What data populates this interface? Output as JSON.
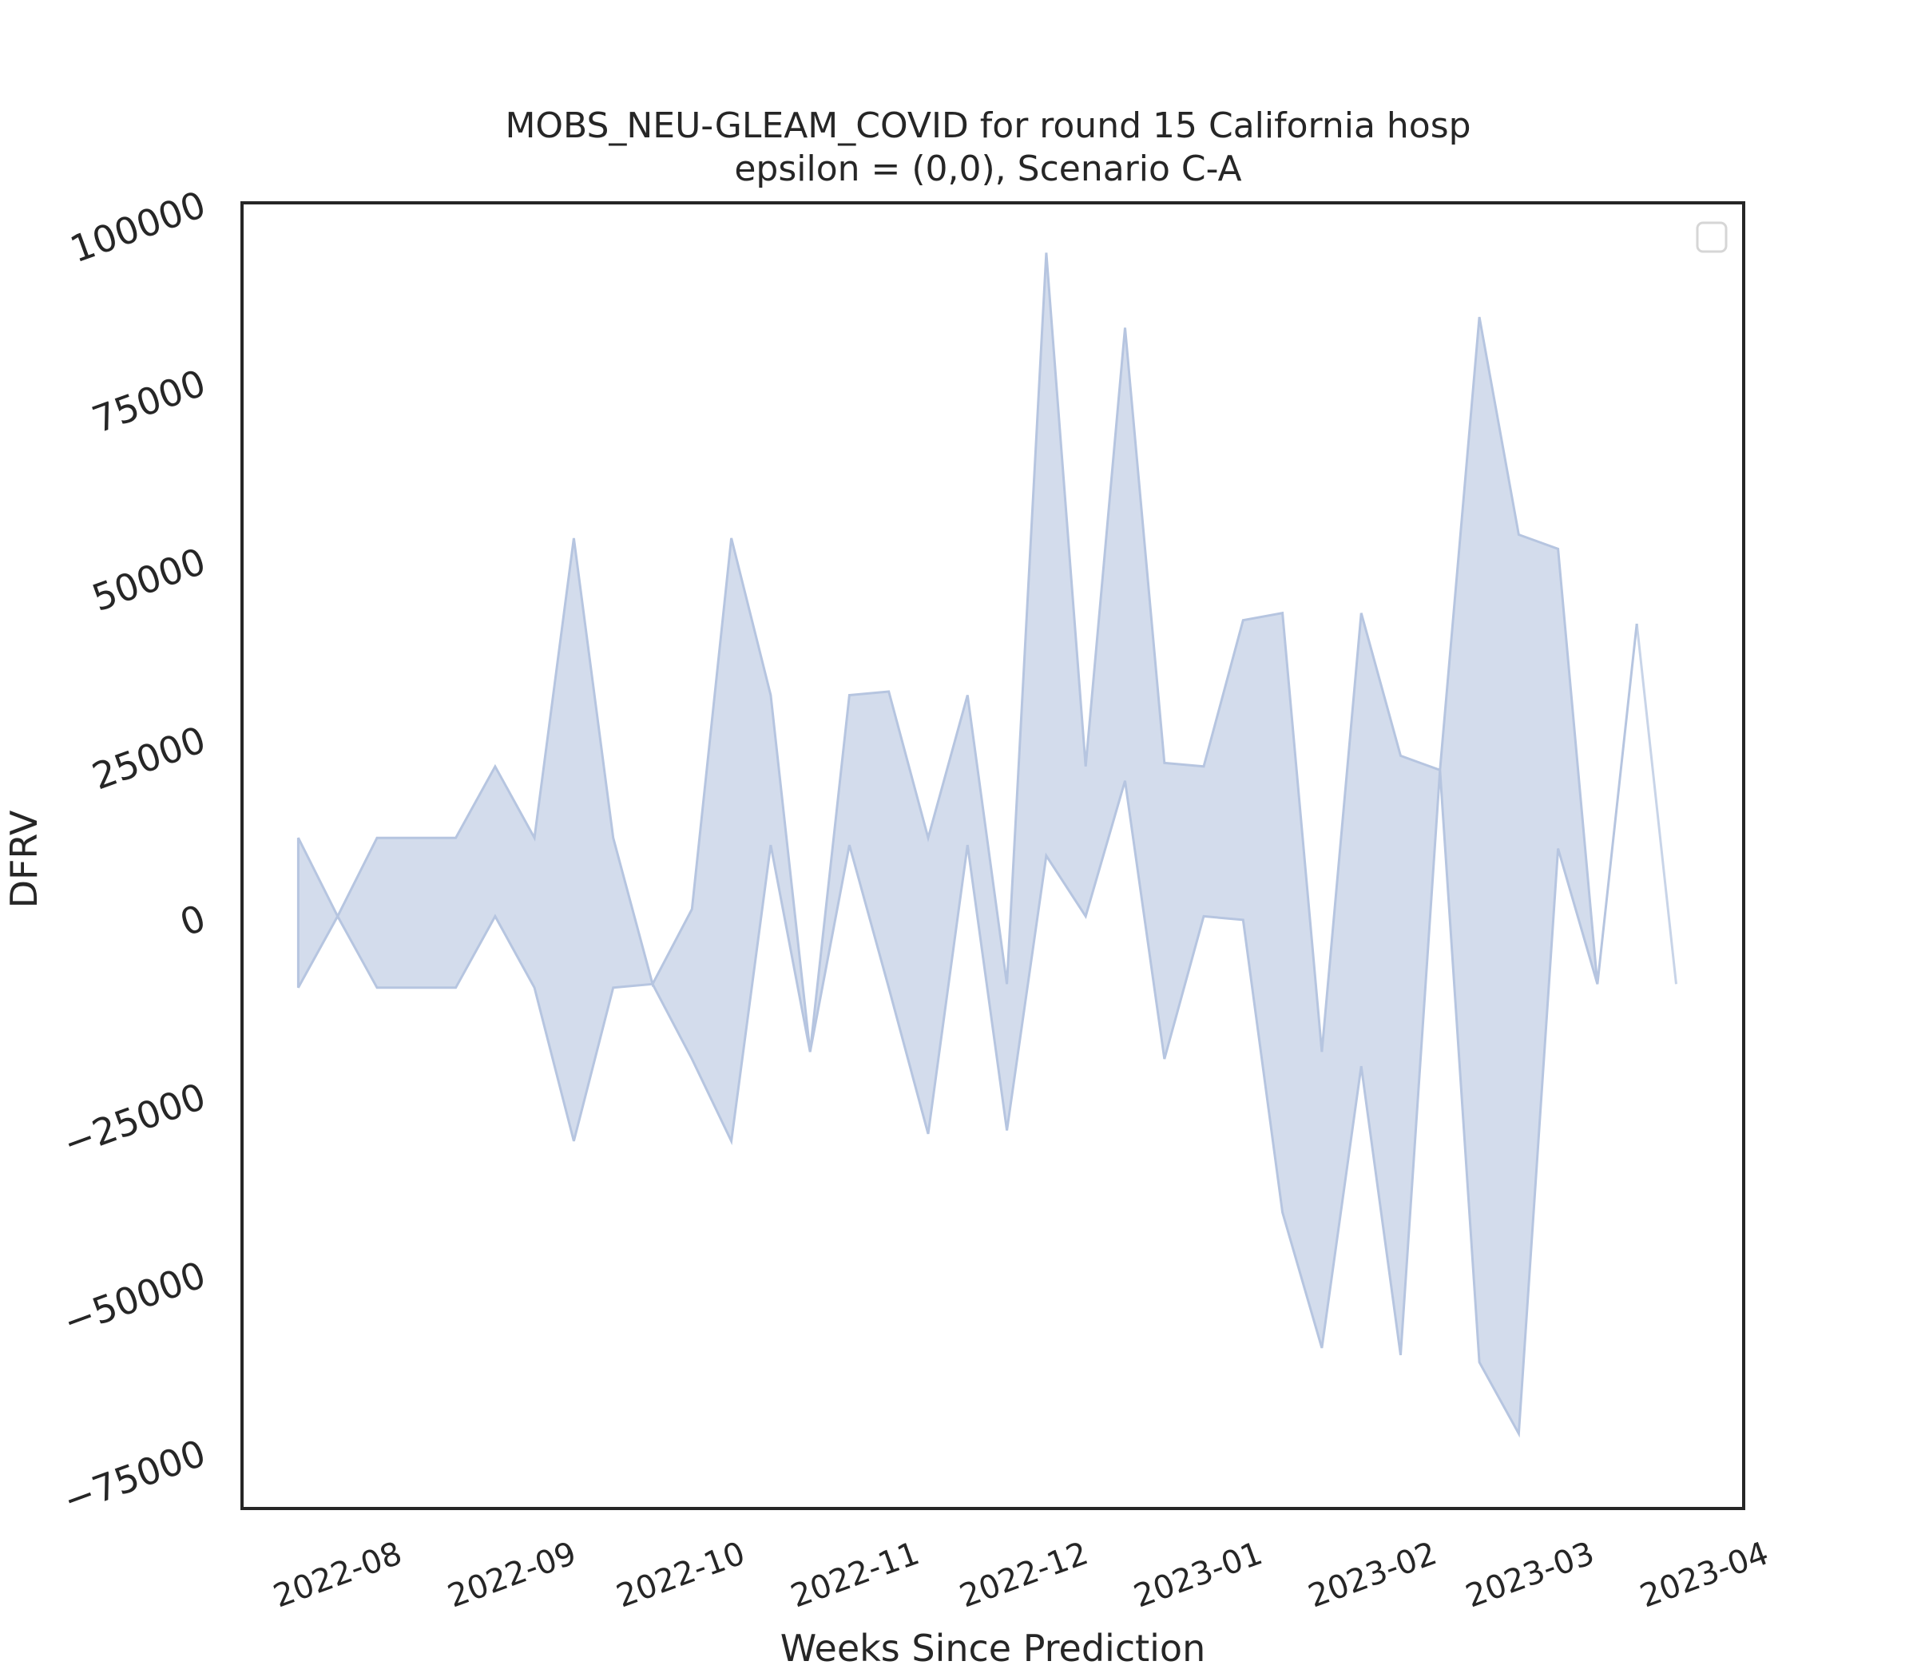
{
  "chart_data": {
    "type": "area",
    "title": "MOBS_NEU-GLEAM_COVID for round 15 California hosp",
    "subtitle": "epsilon = (0,0), Scenario C-A",
    "xlabel": "Weeks Since Prediction",
    "ylabel": "DFRV",
    "ylim": [
      -83000,
      100000
    ],
    "xlim": [
      "2022-07-12",
      "2023-04-05"
    ],
    "yticks": [
      "100000",
      "75000",
      "50000",
      "25000",
      "0",
      "−25000",
      "−50000",
      "−75000"
    ],
    "xticks": [
      "2022-08",
      "2022-09",
      "2022-10",
      "2022-11",
      "2022-12",
      "2023-01",
      "2023-02",
      "2023-03",
      "2023-04"
    ],
    "grid": false,
    "legend": "top-right, empty",
    "fill_color": "#b6c5e0",
    "band": {
      "x": [
        "2022-07-22",
        "2022-07-29",
        "2022-08-05",
        "2022-08-12",
        "2022-08-19",
        "2022-08-26",
        "2022-09-02",
        "2022-09-09",
        "2022-09-16",
        "2022-09-23",
        "2022-09-30",
        "2022-10-07",
        "2022-10-14",
        "2022-10-21",
        "2022-10-28",
        "2022-11-04",
        "2022-11-11",
        "2022-11-18",
        "2022-11-25",
        "2022-12-02",
        "2022-12-09",
        "2022-12-16",
        "2022-12-23",
        "2022-12-30",
        "2023-01-06",
        "2023-01-13",
        "2023-01-20",
        "2023-01-27",
        "2023-02-03",
        "2023-02-10",
        "2023-02-17",
        "2023-02-24",
        "2023-03-03",
        "2023-03-10",
        "2023-03-17"
      ],
      "upper": [
        11000,
        0,
        11000,
        11000,
        11000,
        21000,
        11000,
        53000,
        11000,
        -9500,
        1000,
        53000,
        31000,
        -19000,
        31000,
        31500,
        11000,
        31000,
        -9500,
        93000,
        21000,
        82500,
        21500,
        21000,
        41500,
        42500,
        -19000,
        42500,
        22500,
        20500,
        84000,
        53500,
        51500,
        -9500,
        41000
      ],
      "lower": [
        -10000,
        0,
        -10000,
        -10000,
        -10000,
        0,
        -10000,
        -31500,
        -10000,
        -9500,
        -20000,
        -31500,
        10000,
        -19000,
        10000,
        -10000,
        -30500,
        10000,
        -30000,
        8500,
        0,
        19000,
        -20000,
        0,
        -500,
        -41500,
        -60500,
        -21000,
        -61500,
        20500,
        -62500,
        -72500,
        9500,
        -9500,
        41000
      ]
    },
    "tail_segment": {
      "x": [
        "2023-03-17",
        "2023-03-24"
      ],
      "values": [
        41000,
        -9500
      ]
    }
  }
}
